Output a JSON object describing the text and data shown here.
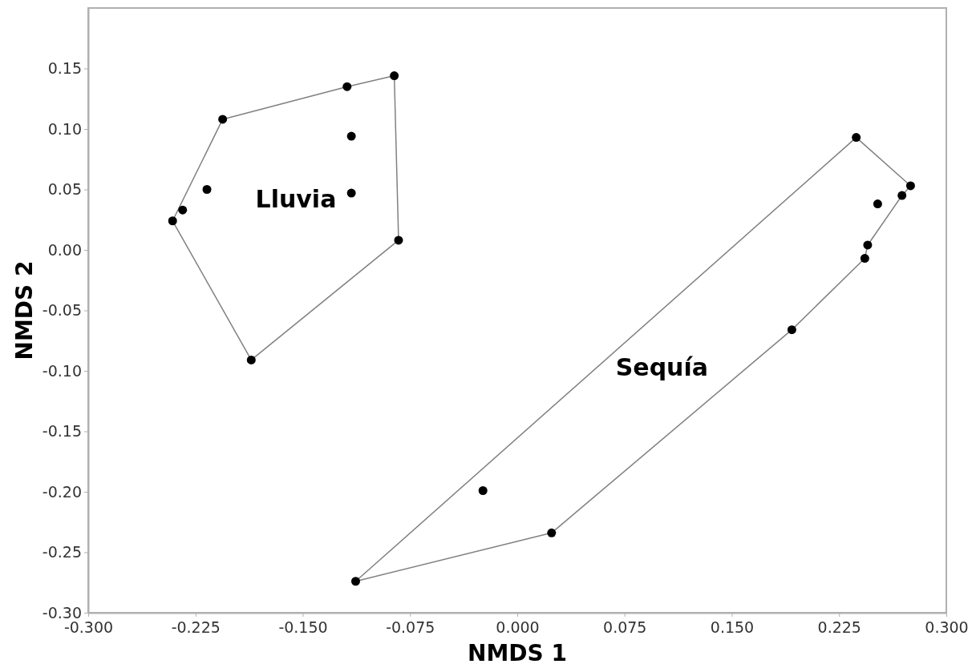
{
  "chart_data": {
    "type": "scatter",
    "xlabel": "NMDS 1",
    "ylabel": "NMDS 2",
    "xlim": [
      -0.3,
      0.3
    ],
    "ylim": [
      -0.3,
      0.2
    ],
    "xticks": [
      {
        "value": -0.3,
        "label": "-0.300"
      },
      {
        "value": -0.225,
        "label": "-0.225"
      },
      {
        "value": -0.15,
        "label": "-0.150"
      },
      {
        "value": -0.075,
        "label": "-0.075"
      },
      {
        "value": 0,
        "label": "0.000"
      },
      {
        "value": 0.075,
        "label": "0.075"
      },
      {
        "value": 0.15,
        "label": "0.150"
      },
      {
        "value": 0.225,
        "label": "0.225"
      },
      {
        "value": 0.3,
        "label": "0.300"
      }
    ],
    "yticks": [
      {
        "value": -0.3,
        "label": "-0.30"
      },
      {
        "value": -0.25,
        "label": "-0.25"
      },
      {
        "value": -0.2,
        "label": "-0.20"
      },
      {
        "value": -0.15,
        "label": "-0.15"
      },
      {
        "value": -0.1,
        "label": "-0.10"
      },
      {
        "value": -0.05,
        "label": "-0.05"
      },
      {
        "value": 0,
        "label": "0.00"
      },
      {
        "value": 0.05,
        "label": "0.05"
      },
      {
        "value": 0.1,
        "label": "0.10"
      },
      {
        "value": 0.15,
        "label": "0.15"
      }
    ],
    "grid": false,
    "marker": "circle",
    "series": [
      {
        "type": "line",
        "marker": "none",
        "color": "#808080",
        "x": [
          -0.241,
          -0.206,
          -0.119,
          -0.086,
          -0.083
        ],
        "values": [
          0.024,
          0.108,
          0.135,
          0.144,
          0.008
        ]
      },
      {
        "type": "line",
        "marker": "none",
        "color": "#808080",
        "x": [
          -0.241,
          -0.186,
          -0.083
        ],
        "values": [
          0.024,
          -0.091,
          0.008
        ]
      },
      {
        "type": "line",
        "marker": "none",
        "color": "#808080",
        "x": [
          -0.113,
          0.237,
          0.275
        ],
        "values": [
          -0.274,
          0.093,
          0.053
        ]
      },
      {
        "type": "line",
        "marker": "none",
        "color": "#808080",
        "x": [
          -0.113,
          0.024,
          0.192,
          0.243,
          0.245,
          0.269,
          0.275
        ],
        "values": [
          -0.274,
          -0.234,
          -0.066,
          -0.007,
          0.004,
          0.045,
          0.053
        ]
      },
      {
        "color": "#000000",
        "x": [
          -0.241,
          -0.234,
          -0.217,
          -0.206,
          -0.119,
          -0.086,
          -0.116,
          -0.116,
          -0.083,
          -0.186
        ],
        "values": [
          0.024,
          0.033,
          0.05,
          0.108,
          0.135,
          0.144,
          0.094,
          0.047,
          0.008,
          -0.091
        ]
      },
      {
        "color": "#000000",
        "x": [
          -0.113,
          -0.024,
          0.024,
          0.192,
          0.237,
          0.275,
          0.269,
          0.252,
          0.245,
          0.243
        ],
        "values": [
          -0.274,
          -0.199,
          -0.234,
          -0.066,
          0.093,
          0.053,
          0.045,
          0.038,
          0.004,
          -0.007
        ]
      }
    ],
    "annotations": [
      "Lluvia",
      "Sequía"
    ]
  }
}
